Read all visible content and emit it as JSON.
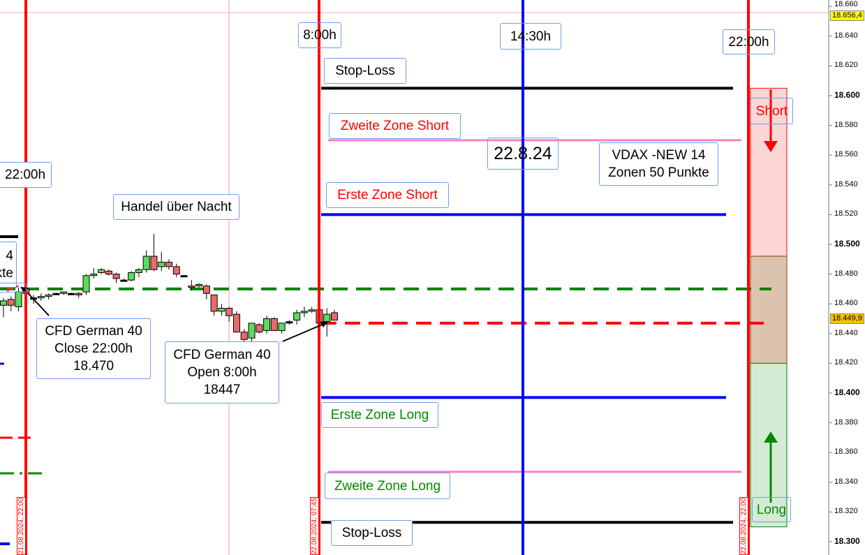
{
  "chart_data": {
    "type": "candlestick",
    "instrument": "CFD German 40",
    "ylim": [
      18300,
      18660
    ],
    "y_ticks": [
      "18.300",
      "18.320",
      "18.340",
      "18.360",
      "18.380",
      "18.400",
      "18.420",
      "18.440",
      "18.460",
      "18.480",
      "18.500",
      "18.520",
      "18.540",
      "18.560",
      "18.580",
      "18.600",
      "18.620",
      "18.640",
      "18.660"
    ],
    "y_tick_values": [
      18300,
      18320,
      18340,
      18360,
      18380,
      18400,
      18420,
      18440,
      18460,
      18480,
      18500,
      18520,
      18540,
      18560,
      18580,
      18600,
      18620,
      18640,
      18660
    ],
    "bold_ticks": [
      18300,
      18400,
      18500,
      18600
    ],
    "price_badges": [
      {
        "text": "18.656,4",
        "value": 18656.4,
        "color": "#ffff00"
      },
      {
        "text": "18.449,9",
        "value": 18449.9,
        "color": "#ffc000"
      }
    ],
    "candles_ohlc": [
      [
        18459,
        18464,
        18451,
        18462
      ],
      [
        18463,
        18465,
        18455,
        18459
      ],
      [
        18458,
        18471,
        18455,
        18468
      ],
      [
        18470,
        18471,
        18466,
        18467
      ],
      [
        18464,
        18466,
        18460,
        18464
      ],
      [
        18464,
        18467,
        18462,
        18465
      ],
      [
        18465,
        18467,
        18463,
        18466
      ],
      [
        18467,
        18467.5,
        18466.5,
        18467
      ],
      [
        18467,
        18468,
        18466,
        18468
      ],
      [
        18467,
        18467.5,
        18466.5,
        18467
      ],
      [
        18467,
        18468,
        18464,
        18466
      ],
      [
        18468,
        18480,
        18466,
        18479
      ],
      [
        18479,
        18484,
        18477,
        18480
      ],
      [
        18481,
        18484,
        18480,
        18483
      ],
      [
        18482,
        18483,
        18479,
        18480
      ],
      [
        18480,
        18481,
        18474,
        18477
      ],
      [
        18476,
        18477,
        18475,
        18476
      ],
      [
        18476,
        18482,
        18475,
        18481
      ],
      [
        18481,
        18484,
        18478,
        18483
      ],
      [
        18483,
        18496,
        18481,
        18492
      ],
      [
        18492,
        18507,
        18482,
        18483
      ],
      [
        18485,
        18495,
        18482,
        18488
      ],
      [
        18488,
        18490,
        18483,
        18485
      ],
      [
        18485,
        18487,
        18478,
        18480
      ],
      [
        18479,
        18479.5,
        18478.5,
        18479
      ],
      [
        18472,
        18476,
        18469,
        18471
      ],
      [
        18472,
        18474,
        18471,
        18473
      ],
      [
        18472,
        18473,
        18463,
        18467
      ],
      [
        18466,
        18466,
        18452,
        18455
      ],
      [
        18455,
        18460,
        18452,
        18457
      ],
      [
        18457,
        18458,
        18448,
        18452
      ],
      [
        18453,
        18455,
        18441,
        18441
      ],
      [
        18441,
        18443,
        18434,
        18436
      ],
      [
        18437,
        18447,
        18432,
        18447
      ],
      [
        18446,
        18447,
        18440,
        18441
      ],
      [
        18442,
        18452,
        18440,
        18450
      ],
      [
        18450,
        18451,
        18442,
        18442
      ],
      [
        18442,
        18447,
        18440,
        18447
      ],
      [
        18448,
        18449,
        18446,
        18448
      ],
      [
        18449,
        18456,
        18446,
        18454
      ],
      [
        18454,
        18458,
        18451,
        18455
      ],
      [
        18455,
        18458,
        18454,
        18456
      ],
      [
        18456,
        18459,
        18446,
        18447
      ],
      [
        18448,
        18457,
        18438,
        18453
      ],
      [
        18454,
        18456,
        18449,
        18449
      ]
    ],
    "horizontal_levels": [
      {
        "name": "stop-loss-top",
        "value": 18605,
        "color": "#000000",
        "style": "solid"
      },
      {
        "name": "zweite-zone-short",
        "value": 18570,
        "color": "#ff80c0",
        "style": "solid"
      },
      {
        "name": "erste-zone-short",
        "value": 18520,
        "color": "#0000ff",
        "style": "solid"
      },
      {
        "name": "close-level",
        "value": 18470,
        "color": "#008000",
        "style": "dashed"
      },
      {
        "name": "open-level",
        "value": 18447,
        "color": "#ff0000",
        "style": "dashed"
      },
      {
        "name": "erste-zone-long",
        "value": 18397,
        "color": "#0000ff",
        "style": "solid"
      },
      {
        "name": "zweite-zone-long",
        "value": 18347,
        "color": "#ff80c0",
        "style": "solid"
      },
      {
        "name": "stop-loss-bottom",
        "value": 18313,
        "color": "#000000",
        "style": "solid"
      }
    ],
    "zones": [
      {
        "name": "short-zone",
        "from": 18492,
        "to": 18605,
        "color": "#ffd6d6"
      },
      {
        "name": "middle-zone",
        "from": 18420,
        "to": 18492,
        "color": "#dcc3b0"
      },
      {
        "name": "long-zone",
        "from": 18310,
        "to": 18420,
        "color": "#d5ead5"
      }
    ],
    "date_labels": [
      "21.08.2024, 22:00",
      "22.08.2024, 07:45",
      "22.08.2024, 22:00"
    ]
  },
  "labels": {
    "time_800": "8:00h",
    "time_1430": "14:30h",
    "time_2200_right": "22:00h",
    "time_2200_left": "22:00h",
    "stop_loss_top": "Stop-Loss",
    "zweite_zone_short": "Zweite Zone Short",
    "date": "22.8.24",
    "vdax_line1": "VDAX -NEW 14",
    "vdax_line2": "Zonen 50 Punkte",
    "erste_zone_short": "Erste Zone Short",
    "handel": "Handel über Nacht",
    "left_partial_line1": "4",
    "left_partial_line2": "kte",
    "close_line1": "CFD German 40",
    "close_line2": "Close 22:00h",
    "close_line3": "18.470",
    "open_line1": "CFD German 40",
    "open_line2": "Open 8:00h",
    "open_line3": "18447",
    "erste_zone_long": "Erste Zone Long",
    "zweite_zone_long": "Zweite Zone Long",
    "stop_loss_bottom": "Stop-Loss",
    "short": "Short",
    "long": "Long"
  }
}
